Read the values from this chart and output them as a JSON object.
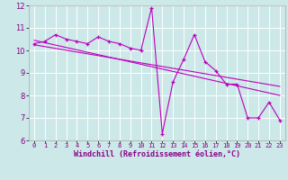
{
  "xlabel": "Windchill (Refroidissement éolien,°C)",
  "background_color": "#cce8e8",
  "grid_color": "#ffffff",
  "line_color": "#bb00bb",
  "x_hours": [
    0,
    1,
    2,
    3,
    4,
    5,
    6,
    7,
    8,
    9,
    10,
    11,
    12,
    13,
    14,
    15,
    16,
    17,
    18,
    19,
    20,
    21,
    22,
    23
  ],
  "series1": [
    10.3,
    10.4,
    10.7,
    10.5,
    10.4,
    10.3,
    10.6,
    10.4,
    10.3,
    10.1,
    10.0,
    11.9,
    6.3,
    8.6,
    9.6,
    10.7,
    9.5,
    9.1,
    8.5,
    8.5,
    7.0,
    7.0,
    7.7,
    6.9
  ],
  "trend1_y": [
    10.45,
    8.0
  ],
  "trend2_y": [
    10.25,
    8.4
  ],
  "ylim": [
    6,
    12
  ],
  "xlim": [
    -0.5,
    23.5
  ],
  "yticks": [
    6,
    7,
    8,
    9,
    10,
    11,
    12
  ],
  "xticks": [
    0,
    1,
    2,
    3,
    4,
    5,
    6,
    7,
    8,
    9,
    10,
    11,
    12,
    13,
    14,
    15,
    16,
    17,
    18,
    19,
    20,
    21,
    22,
    23
  ],
  "xlabel_color": "#880088",
  "xlabel_fontsize": 6,
  "tick_fontsize_x": 5,
  "tick_fontsize_y": 6
}
